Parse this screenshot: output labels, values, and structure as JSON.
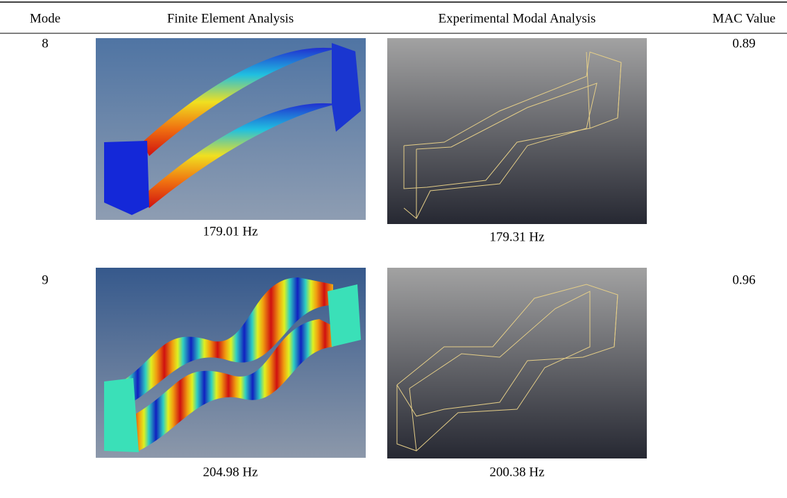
{
  "table": {
    "header": [
      "Mode",
      "Finite Element Analysis",
      "Experimental Modal Analysis",
      "MAC Value"
    ],
    "rows": [
      {
        "mode": "8",
        "fea_frequency": "179.01 Hz",
        "ema_frequency": "179.31 Hz",
        "mac": "0.89"
      },
      {
        "mode": "9",
        "fea_frequency": "204.98 Hz",
        "ema_frequency": "200.38 Hz",
        "mac": "0.96"
      }
    ]
  }
}
